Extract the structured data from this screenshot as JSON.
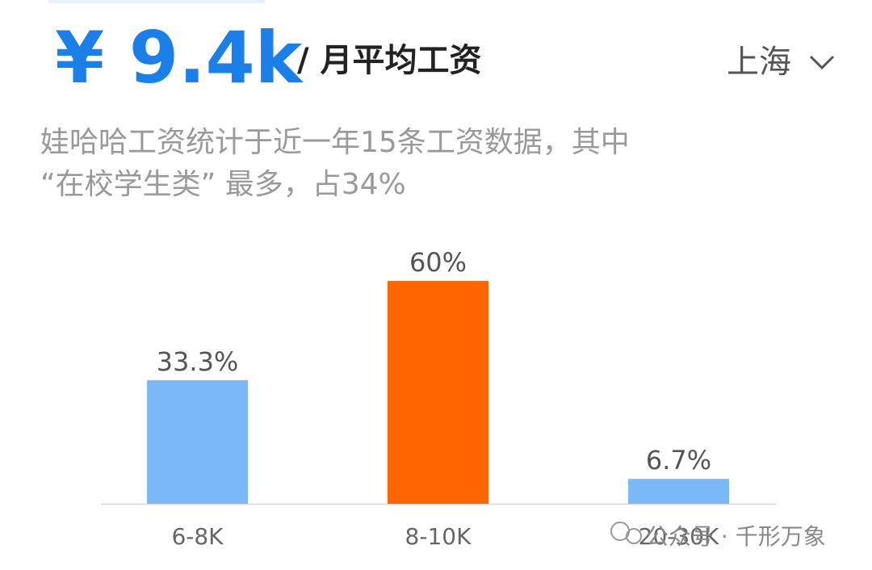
{
  "header": {
    "price": "¥ 9.4k",
    "unit": "/ 月平均工资",
    "city": "上海"
  },
  "description": [
    "娃哈哈工资统计于近一年15条工资数据，其中",
    "“在校学生类” 最多，占34%"
  ],
  "chart_data": {
    "type": "bar",
    "categories": [
      "6-8K",
      "8-10K",
      "20-30K"
    ],
    "values": [
      33.3,
      60,
      6.7
    ],
    "value_labels": [
      "33.3%",
      "60%",
      "6.7%"
    ],
    "colors": [
      "#7ab8f7",
      "#ff6600",
      "#7ab8f7"
    ]
  },
  "watermark": "公众号 · 千形万象"
}
